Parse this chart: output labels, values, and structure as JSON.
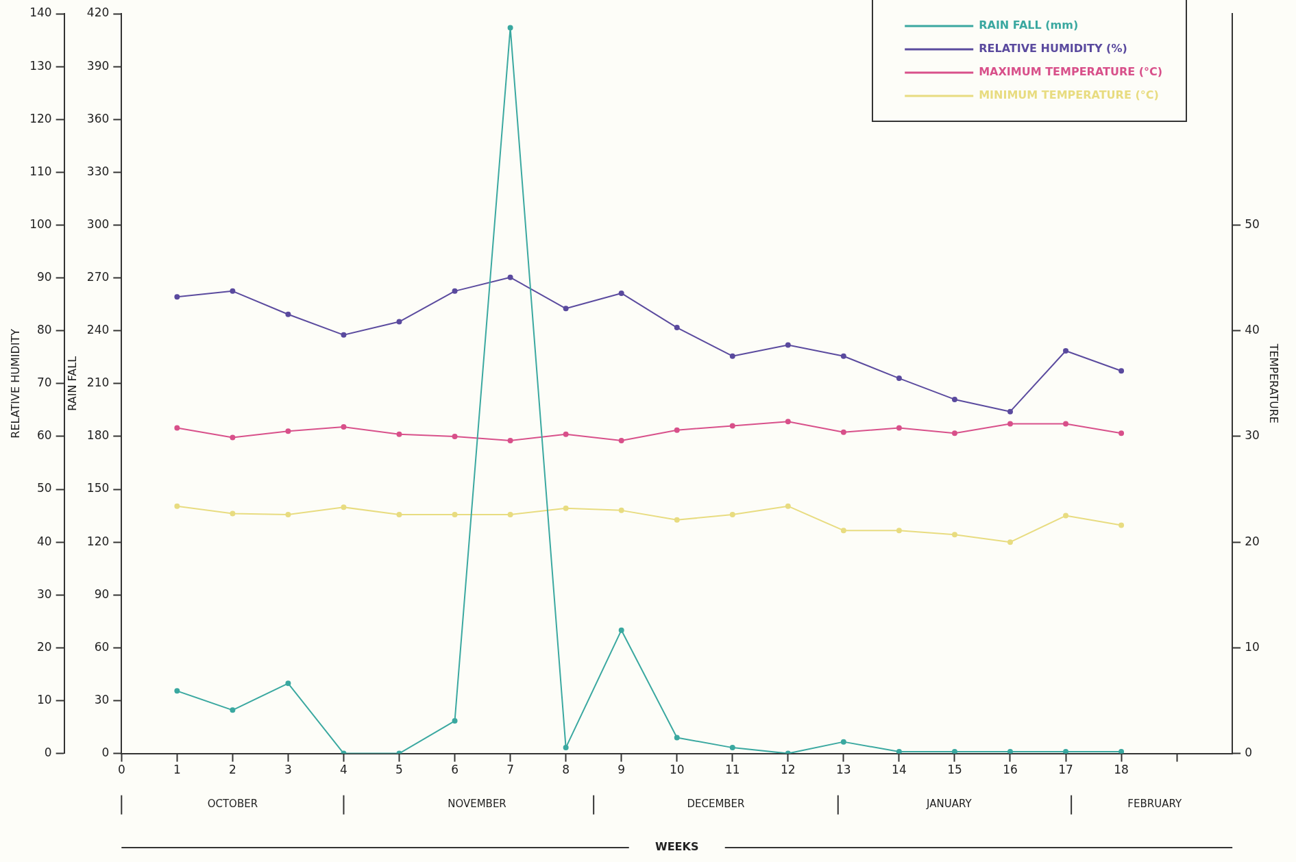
{
  "chart_data": {
    "type": "line",
    "ylabel": "RELATIVE HUMIDITY",
    "y2label": "RAIN FALL",
    "y3label": "TEMPERATURE",
    "x": [
      1,
      2,
      3,
      4,
      5,
      6,
      7,
      8,
      9,
      10,
      11,
      12,
      13,
      14,
      15,
      16,
      17,
      18
    ],
    "xlim": [
      0,
      20
    ],
    "xticks": [
      0,
      1,
      2,
      3,
      4,
      5,
      6,
      7,
      8,
      9,
      10,
      11,
      12,
      13,
      14,
      15,
      16,
      17,
      18,
      {
        "value": 19,
        "label": null
      }
    ],
    "ylim": [
      0,
      140
    ],
    "yticks": [
      0,
      10,
      20,
      30,
      40,
      50,
      60,
      70,
      80,
      90,
      100,
      110,
      120,
      130,
      140
    ],
    "y2lim": [
      0,
      420
    ],
    "y2ticks": [
      0,
      30,
      60,
      90,
      120,
      150,
      180,
      210,
      240,
      270,
      300,
      330,
      360,
      390,
      420
    ],
    "y3lim": [
      0,
      70
    ],
    "y3ticks": [
      0,
      10,
      20,
      30,
      40,
      50
    ],
    "series": [
      {
        "name": "RAIN FALL (mm)",
        "color": "#3aa8a0",
        "axis": "y2",
        "values": [
          35.5,
          24.6,
          39.8,
          0,
          0,
          18.5,
          412,
          3.3,
          70,
          9,
          3.3,
          0,
          6.6,
          1,
          1,
          1,
          1,
          1
        ]
      },
      {
        "name": "RELATIVE HUMIDITY (%)",
        "color": "#5a4a9e",
        "values": [
          86.4,
          87.5,
          83.1,
          79.2,
          81.7,
          87.5,
          90.1,
          84.2,
          87.1,
          80.6,
          75.2,
          77.3,
          75.2,
          71,
          67,
          64.7,
          76.2,
          72.4
        ]
      },
      {
        "name": "MAXIMUM TEMPERATURE (°C)",
        "color": "#d8508a",
        "axis": "y3",
        "values": [
          30.8,
          29.9,
          30.5,
          30.9,
          30.2,
          30.0,
          29.6,
          30.2,
          29.6,
          30.6,
          31.0,
          31.4,
          30.4,
          30.8,
          30.3,
          31.2,
          31.2,
          30.3
        ]
      },
      {
        "name": "MINIMUM TEMPERATURE (°C)",
        "color": "#e8dc80",
        "axis": "y3",
        "values": [
          23.4,
          22.7,
          22.6,
          23.3,
          22.6,
          22.6,
          22.6,
          23.2,
          23.0,
          22.1,
          22.6,
          23.4,
          21.1,
          21.1,
          20.7,
          20.0,
          22.5,
          21.6
        ]
      }
    ],
    "annotations": [
      "OCTOBER",
      "NOVEMBER",
      "DECEMBER",
      "JANUARY",
      "FEBRUARY",
      "WEEKS"
    ],
    "grid": false,
    "legend": "top right",
    "marker": "circle",
    "line_style": "solid"
  }
}
